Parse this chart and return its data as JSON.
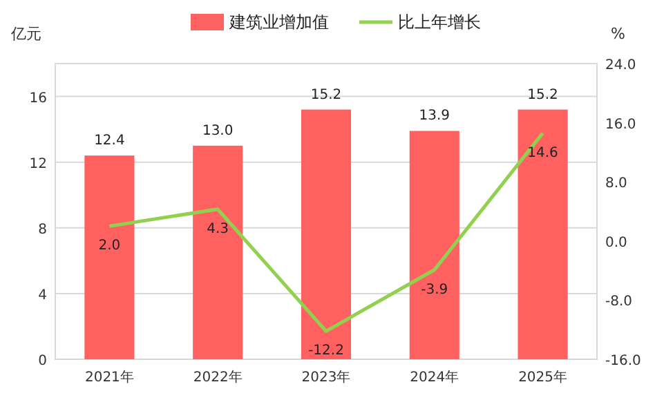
{
  "chart_data": {
    "type": "bar",
    "categories": [
      "2021年",
      "2022年",
      "2023年",
      "2024年",
      "2025年"
    ],
    "series": [
      {
        "name": "建筑业增加值",
        "color": "#ff6161",
        "values": [
          12.4,
          13.0,
          15.2,
          13.9,
          15.2
        ],
        "value_labels": [
          "12.4",
          "13.0",
          "15.2",
          "13.9",
          "15.2"
        ]
      },
      {
        "name": "比上年增长",
        "type": "line",
        "axis": "y2",
        "color": "#92d050",
        "values": [
          2.0,
          4.3,
          -12.2,
          -3.9,
          14.6
        ],
        "value_labels": [
          "2.0",
          "4.3",
          "-12.2",
          "-3.9",
          "14.6"
        ]
      }
    ],
    "ylabel": "亿元",
    "y2label": "%",
    "ylim": [
      0,
      18
    ],
    "yticks": [
      0,
      4,
      8,
      12,
      16
    ],
    "y2lim": [
      -16,
      24
    ],
    "y2ticks": [
      {
        "value": -16,
        "label": "-16.0"
      },
      {
        "value": -8,
        "label": "-8.0"
      },
      {
        "value": 0,
        "label": "0.0"
      },
      {
        "value": 8,
        "label": "8.0"
      },
      {
        "value": 16,
        "label": "16.0"
      },
      {
        "value": 24,
        "label": "24.0"
      }
    ],
    "grid": "y",
    "legend": "top",
    "marker": "none",
    "line_style": "solid"
  }
}
